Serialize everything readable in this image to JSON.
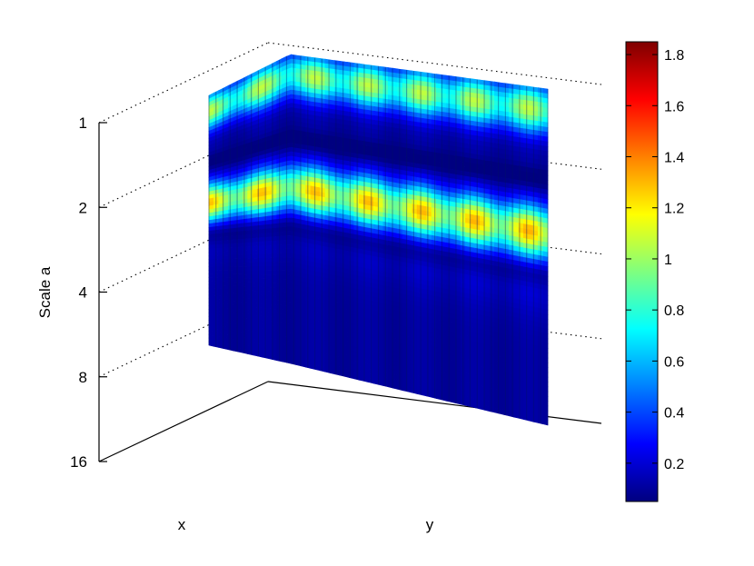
{
  "chart_data": {
    "type": "3d-surface",
    "title": "",
    "xlabel": "x",
    "ylabel": "y",
    "zlabel": "Scale a",
    "z_ticks": [
      "1",
      "2",
      "4",
      "8",
      "16"
    ],
    "z_scale": "log2",
    "colormap": "jet",
    "colorbar": {
      "range": [
        0.05,
        1.85
      ],
      "ticks": [
        0.2,
        0.4,
        0.6,
        0.8,
        1,
        1.2,
        1.4,
        1.6,
        1.8
      ],
      "tick_labels": [
        "0.2",
        "0.4",
        "0.6",
        "0.8",
        "1",
        "1.2",
        "1.4",
        "1.6",
        "1.8"
      ],
      "placement": "right"
    },
    "ridges": [
      {
        "scale": 1.2,
        "peak_value": 0.95
      },
      {
        "scale": 3.3,
        "peak_value": 1.15
      }
    ],
    "grid": true
  }
}
